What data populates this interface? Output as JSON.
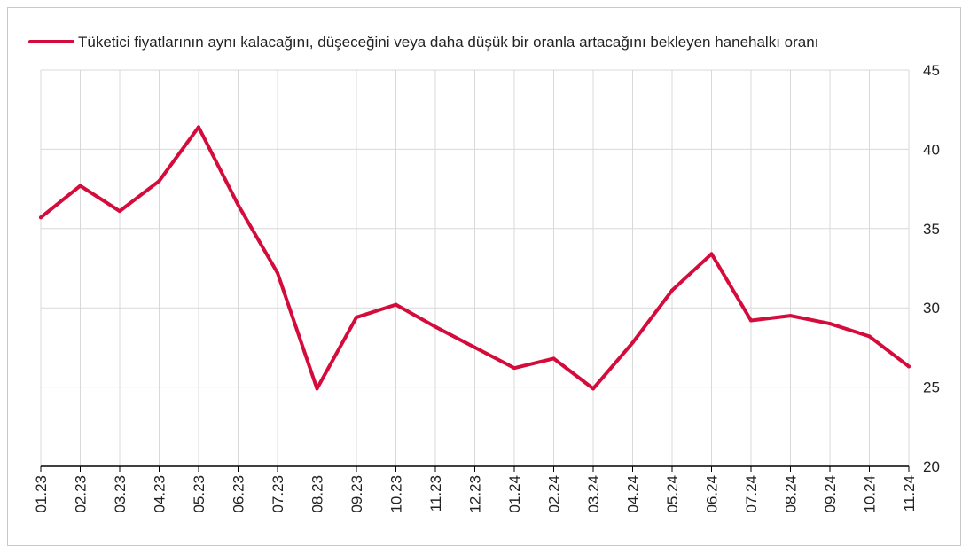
{
  "chart_data": {
    "type": "line",
    "categories": [
      "01.23",
      "02.23",
      "03.23",
      "04.23",
      "05.23",
      "06.23",
      "07.23",
      "08.23",
      "09.23",
      "10.23",
      "11.23",
      "12.23",
      "01.24",
      "02.24",
      "03.24",
      "04.24",
      "05.24",
      "06.24",
      "07.24",
      "08.24",
      "09.24",
      "10.24",
      "11.24"
    ],
    "series": [
      {
        "name": "Tüketici fiyatlarının aynı kalacağını, düşeceğini veya daha düşük bir oranla artacağını bekleyen hanehalkı oranı",
        "values": [
          35.7,
          37.7,
          36.1,
          38.0,
          41.4,
          36.5,
          32.2,
          24.9,
          29.4,
          30.2,
          28.8,
          27.5,
          26.2,
          26.8,
          24.9,
          27.8,
          31.1,
          33.4,
          29.2,
          29.5,
          29.0,
          28.2,
          26.3
        ],
        "color": "#d40c3c"
      }
    ],
    "ylim": [
      20,
      45
    ],
    "yticks": [
      "20",
      "25",
      "30",
      "35",
      "40",
      "45"
    ],
    "y_axis_side": "right",
    "grid": true,
    "legend_position": "top-left",
    "gridline_color": "#d9d9d9"
  }
}
